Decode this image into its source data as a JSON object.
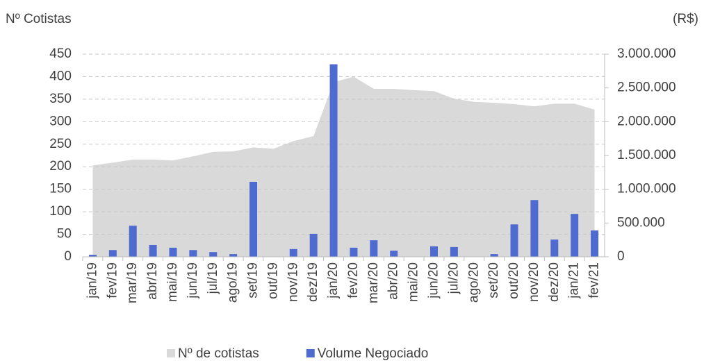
{
  "chart_data": {
    "type": "bar-area",
    "y_label": "Nº Cotistas",
    "y2_label": "(R$)",
    "categories": [
      "jan/19",
      "fev/19",
      "mar/19",
      "abr/19",
      "mai/19",
      "jun/19",
      "jul/19",
      "ago/19",
      "set/19",
      "out/19",
      "nov/19",
      "dez/19",
      "jan/20",
      "fev/20",
      "mar/20",
      "abr/20",
      "mai/20",
      "jun/20",
      "jul/20",
      "ago/20",
      "set/20",
      "out/20",
      "nov/20",
      "dez/20",
      "jan/21",
      "fev/21"
    ],
    "series": [
      {
        "name": "Nº de cotistas",
        "type": "area",
        "color": "#d9d9d9",
        "axis": "y",
        "values": [
          203,
          209,
          216,
          216,
          214,
          223,
          233,
          234,
          243,
          240,
          257,
          268,
          388,
          400,
          373,
          373,
          370,
          368,
          351,
          344,
          342,
          339,
          334,
          340,
          340,
          327
        ]
      },
      {
        "name": "Volume Negociado",
        "type": "bar",
        "color": "#4f6bd0",
        "axis": "y2",
        "values": [
          30000,
          100000,
          460000,
          175000,
          135000,
          100000,
          70000,
          40000,
          1110000,
          0,
          115000,
          340000,
          2850000,
          135000,
          245000,
          90000,
          0,
          155000,
          145000,
          0,
          40000,
          480000,
          840000,
          255000,
          635000,
          390000
        ]
      }
    ],
    "ylim": [
      0,
      450
    ],
    "yticks": [
      0,
      50,
      100,
      150,
      200,
      250,
      300,
      350,
      400,
      450
    ],
    "y2lim": [
      0,
      3000000
    ],
    "y2ticks": [
      {
        "value": 0,
        "label": "0"
      },
      {
        "value": 500000,
        "label": "500.000"
      },
      {
        "value": 1000000,
        "label": "1.000.000"
      },
      {
        "value": 1500000,
        "label": "1.500.000"
      },
      {
        "value": 2000000,
        "label": "2.000.000"
      },
      {
        "value": 2500000,
        "label": "2.500.000"
      },
      {
        "value": 3000000,
        "label": "3.000.000"
      }
    ],
    "grid": true,
    "legend": "bottom"
  }
}
